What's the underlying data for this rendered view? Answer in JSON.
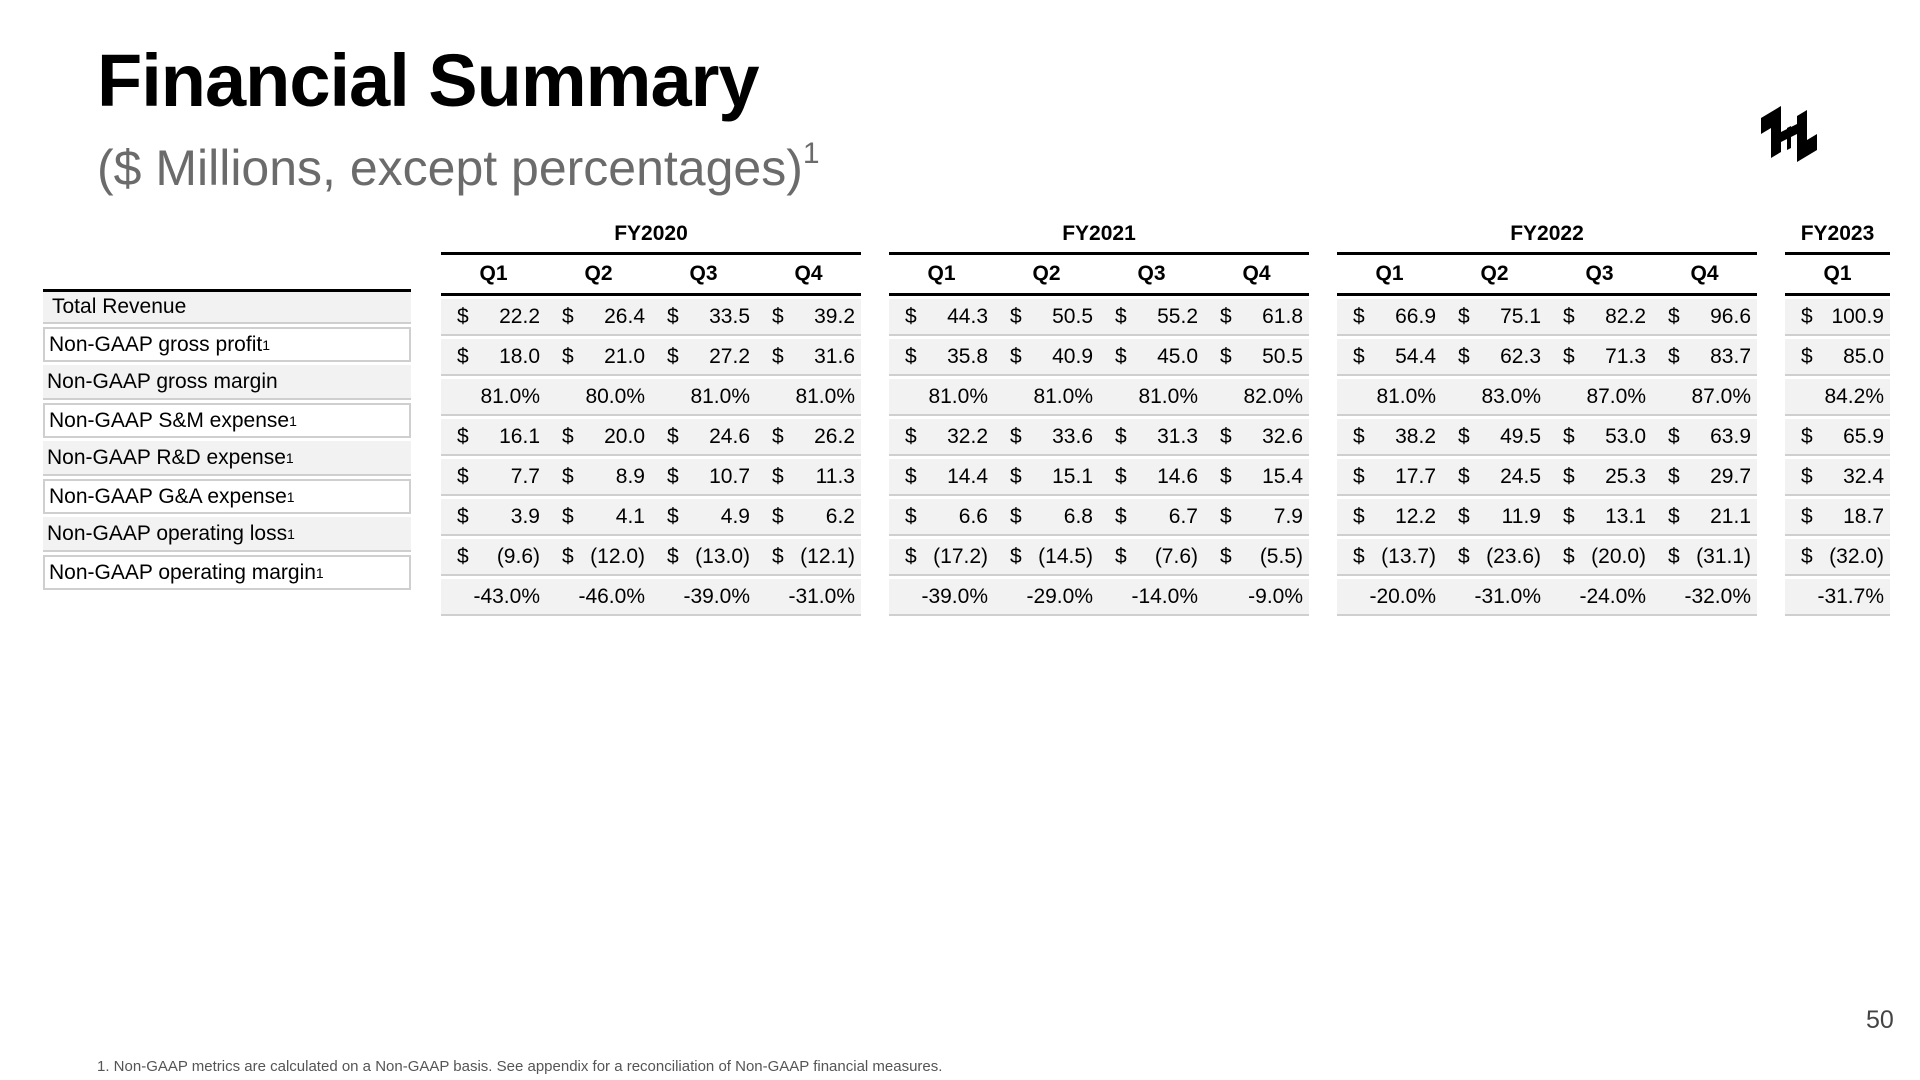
{
  "title": "Financial Summary",
  "subtitle": {
    "text": "($ Millions, except percentages)",
    "superscript": "1"
  },
  "logo_icon": "hashicorp-logo-icon",
  "currency_symbol": "$",
  "years": [
    {
      "label": "FY2020",
      "quarters": [
        "Q1",
        "Q2",
        "Q3",
        "Q4"
      ],
      "rows": [
        [
          "22.2",
          "26.4",
          "33.5",
          "39.2"
        ],
        [
          "18.0",
          "21.0",
          "27.2",
          "31.6"
        ],
        [
          "81.0%",
          "80.0%",
          "81.0%",
          "81.0%"
        ],
        [
          "16.1",
          "20.0",
          "24.6",
          "26.2"
        ],
        [
          "7.7",
          "8.9",
          "10.7",
          "11.3"
        ],
        [
          "3.9",
          "4.1",
          "4.9",
          "6.2"
        ],
        [
          "(9.6)",
          "(12.0)",
          "(13.0)",
          "(12.1)"
        ],
        [
          "-43.0%",
          "-46.0%",
          "-39.0%",
          "-31.0%"
        ]
      ]
    },
    {
      "label": "FY2021",
      "quarters": [
        "Q1",
        "Q2",
        "Q3",
        "Q4"
      ],
      "rows": [
        [
          "44.3",
          "50.5",
          "55.2",
          "61.8"
        ],
        [
          "35.8",
          "40.9",
          "45.0",
          "50.5"
        ],
        [
          "81.0%",
          "81.0%",
          "81.0%",
          "82.0%"
        ],
        [
          "32.2",
          "33.6",
          "31.3",
          "32.6"
        ],
        [
          "14.4",
          "15.1",
          "14.6",
          "15.4"
        ],
        [
          "6.6",
          "6.8",
          "6.7",
          "7.9"
        ],
        [
          "(17.2)",
          "(14.5)",
          "(7.6)",
          "(5.5)"
        ],
        [
          "-39.0%",
          "-29.0%",
          "-14.0%",
          "-9.0%"
        ]
      ]
    },
    {
      "label": "FY2022",
      "quarters": [
        "Q1",
        "Q2",
        "Q3",
        "Q4"
      ],
      "rows": [
        [
          "66.9",
          "75.1",
          "82.2",
          "96.6"
        ],
        [
          "54.4",
          "62.3",
          "71.3",
          "83.7"
        ],
        [
          "81.0%",
          "83.0%",
          "87.0%",
          "87.0%"
        ],
        [
          "38.2",
          "49.5",
          "53.0",
          "63.9"
        ],
        [
          "17.7",
          "24.5",
          "25.3",
          "29.7"
        ],
        [
          "12.2",
          "11.9",
          "13.1",
          "21.1"
        ],
        [
          "(13.7)",
          "(23.6)",
          "(20.0)",
          "(31.1)"
        ],
        [
          "-20.0%",
          "-31.0%",
          "-24.0%",
          "-32.0%"
        ]
      ]
    },
    {
      "label": "FY2023",
      "quarters": [
        "Q1"
      ],
      "rows": [
        [
          "100.9"
        ],
        [
          "85.0"
        ],
        [
          "84.2%"
        ],
        [
          "65.9"
        ],
        [
          "32.4"
        ],
        [
          "18.7"
        ],
        [
          "(32.0)"
        ],
        [
          "-31.7%"
        ]
      ]
    }
  ],
  "metrics": [
    {
      "label": "Total Revenue",
      "sup": "",
      "currency": true
    },
    {
      "label": "Non-GAAP gross profit",
      "sup": "1",
      "currency": true
    },
    {
      "label": "Non-GAAP gross margin",
      "sup": "",
      "currency": false
    },
    {
      "label": "Non-GAAP S&M expense",
      "sup": "1",
      "currency": true
    },
    {
      "label": "Non-GAAP R&D expense",
      "sup": "1",
      "currency": true
    },
    {
      "label": "Non-GAAP G&A expense",
      "sup": "1",
      "currency": true
    },
    {
      "label": "Non-GAAP operating loss",
      "sup": "1",
      "currency": true
    },
    {
      "label": "Non-GAAP operating margin",
      "sup": "1",
      "currency": false
    }
  ],
  "page_number": "50",
  "footnote": "1. Non-GAAP metrics are calculated on a Non-GAAP basis. See appendix for a reconciliation of Non-GAAP financial measures."
}
